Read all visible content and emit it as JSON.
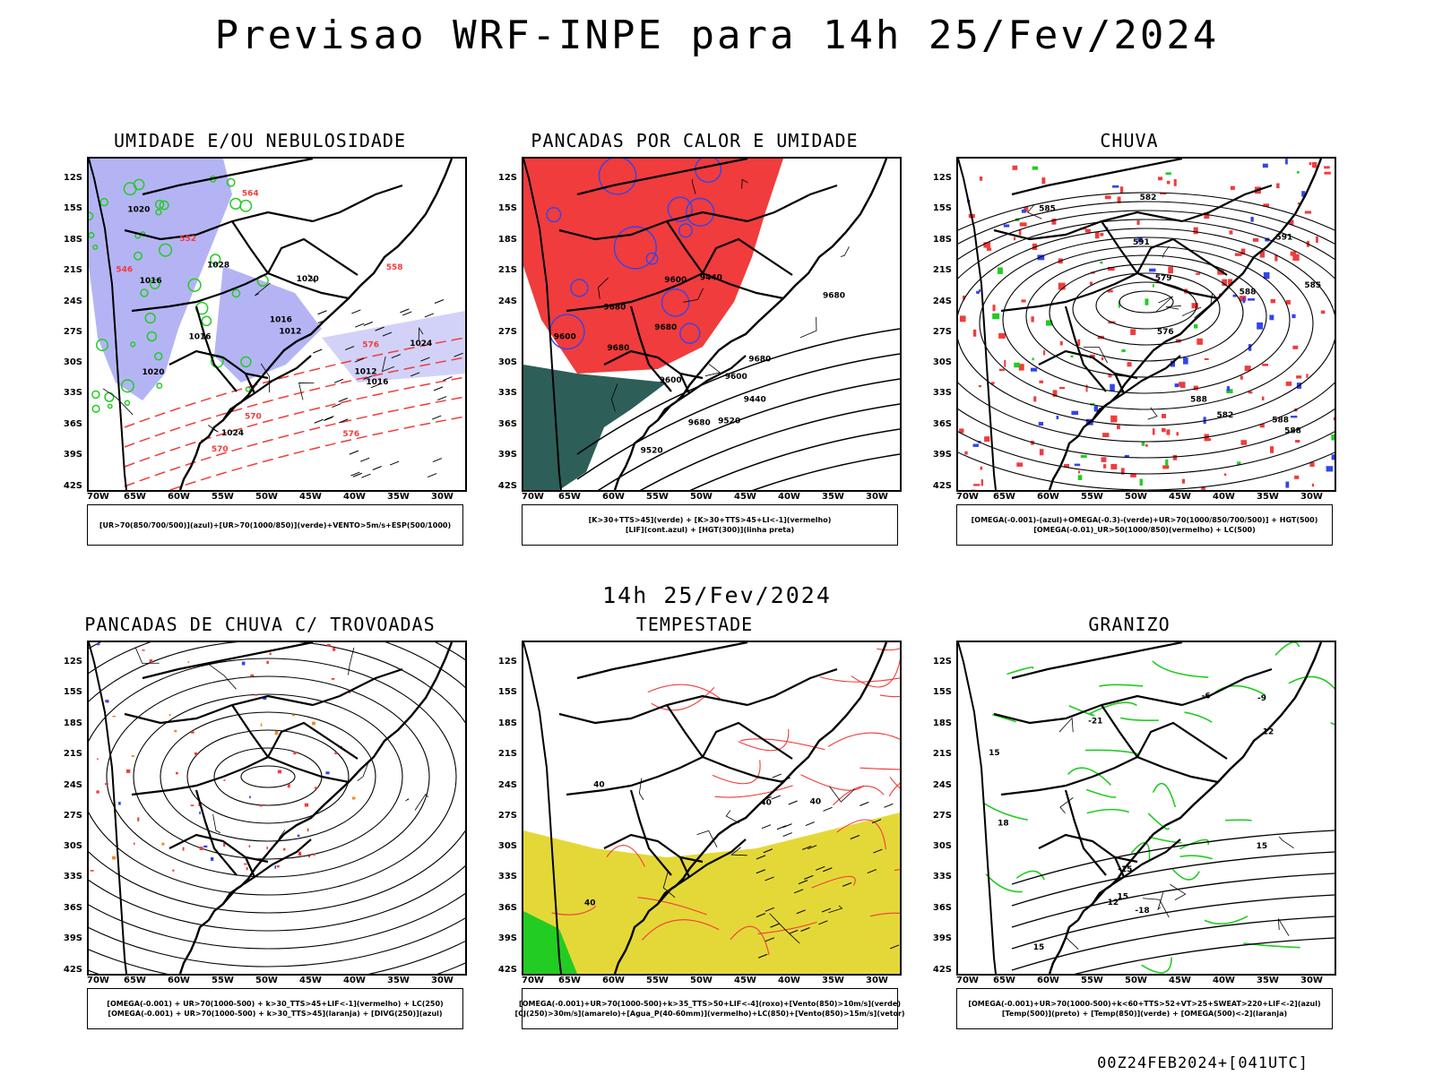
{
  "main_title": "Previsao WRF-INPE  para 14h 25/Fev/2024",
  "mid_title": "14h 25/Fev/2024",
  "footer": "00Z24FEB2024+[041UTC]",
  "lat_ticks": [
    "12S",
    "15S",
    "18S",
    "21S",
    "24S",
    "27S",
    "30S",
    "33S",
    "36S",
    "39S",
    "42S"
  ],
  "lon_ticks": [
    "70W",
    "65W",
    "60W",
    "55W",
    "50W",
    "45W",
    "40W",
    "35W",
    "30W"
  ],
  "colors": {
    "red": "#f03c3c",
    "green": "#22cc22",
    "blue": "#3344ee",
    "lavender": "#b4b4f5",
    "yellow": "#e4d838",
    "darkteal": "#2e5e58",
    "orange": "#f08a2a"
  },
  "panels": [
    {
      "title": "UMIDADE E/OU NEBULOSIDADE",
      "legend": [
        "[UR>70(850/700/500)](azul)+[UR>70(1000/850)](verde)+VENTO>5m/s+ESP(500/1000)"
      ],
      "labels": [
        "1012",
        "1016",
        "1020",
        "1024",
        "1028",
        "1012",
        "1016",
        "1016",
        "1016",
        "1020",
        "1020",
        "1024",
        "576",
        "570",
        "564",
        "558",
        "552",
        "546",
        "570",
        "576"
      ]
    },
    {
      "title": "PANCADAS POR CALOR E UMIDADE",
      "legend": [
        "[K>30+TTS>45](verde) + [K>30+TTS>45+LI<-1](vermelho)",
        "[LIF](cont.azul) + [HGT(300)](linha preta)"
      ],
      "labels": [
        "9680",
        "9680",
        "9600",
        "9680",
        "9680",
        "9520",
        "9600",
        "9440",
        "9600",
        "9520",
        "9440",
        "9680",
        "9680",
        "9600"
      ]
    },
    {
      "title": "CHUVA",
      "legend": [
        "[OMEGA(-0.001)-(azul)+OMEGA(-0.3)-(verde)+UR>70(1000/850/700/500)] + HGT(500)",
        "[OMEGA(-0.01)_UR>50(1000/850)(vermelho) + LC(500)"
      ],
      "labels": [
        "588",
        "591",
        "591",
        "588",
        "585",
        "582",
        "579",
        "576",
        "588",
        "582",
        "588",
        "585"
      ]
    },
    {
      "title": "PANCADAS DE CHUVA C/ TROVOADAS",
      "legend": [
        "[OMEGA(-0.001) + UR>70(1000-500) + k>30_TTS>45+LIF<-1](vermelho) + LC(250)",
        "[OMEGA(-0.001) + UR>70(1000-500) + k>30_TTS>45](laranja) + [DIVG(250)](azul)"
      ],
      "labels": []
    },
    {
      "title": "TEMPESTADE",
      "legend": [
        "[OMEGA(-0.001)+UR>70(1000-500)+k>35_TTS>50+LIF<-4](roxo)+[Vento(850)>10m/s](verde)",
        "[CJ(250)>30m/s](amarelo)+[Agua_P(40-60mm)](vermelho)+LC(850)+[Vento(850)>15m/s](vetor)"
      ],
      "labels": [
        "40",
        "40",
        "40",
        "40"
      ]
    },
    {
      "title": "GRANIZO",
      "legend": [
        "[OMEGA(-0.001)+UR>70(1000-500)+k<60+TTS>52+VT>25+SWEAT>220+LIF<-2](azul)",
        "[Temp(500)](preto) + [Temp(850)](verde) + [OMEGA(500)<-2](laranja)"
      ],
      "labels": [
        "-9",
        "-12",
        "-15",
        "-18",
        "-21",
        "15",
        "15",
        "18",
        "15",
        "15",
        "12",
        "-6"
      ]
    }
  ]
}
